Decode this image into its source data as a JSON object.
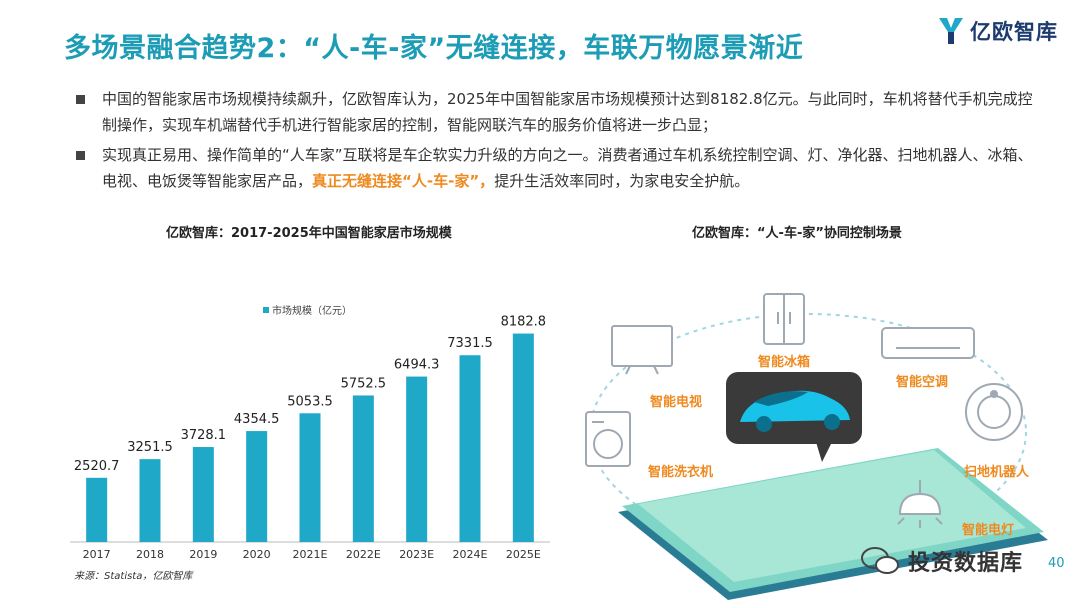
{
  "slide": {
    "title": "多场景融合趋势2：“人-车-家”无缝连接，车联万物愿景渐近",
    "logo_text": "亿欧智库",
    "page_number": "40",
    "watermark": "投资数据库"
  },
  "bullets": [
    {
      "parts": [
        {
          "text": "中国的智能家居市场规模持续飙升，亿欧智库认为，2025年中国智能家居市场规模预计达到8182.8亿元。与此同时，车机将替代手机完成控制操作，实现车机端替代手机进行智能家居的控制，智能网联汽车的服务价值将进一步凸显；",
          "highlight": false
        }
      ]
    },
    {
      "parts": [
        {
          "text": "实现真正易用、操作简单的“人车家”互联将是车企软实力升级的方向之一。消费者通过车机系统控制空调、灯、净化器、扫地机器人、冰箱、电视、电饭煲等智能家居产品，",
          "highlight": false
        },
        {
          "text": "真正无缝连接“人-车-家”，",
          "highlight": true
        },
        {
          "text": "提升生活效率同时，为家电安全护航。",
          "highlight": false
        }
      ]
    }
  ],
  "left_panel": {
    "title": "亿欧智库：2017-2025年中国智能家居市场规模",
    "source": "来源：Statista，亿欧智库"
  },
  "right_panel": {
    "title": "亿欧智库：“人-车-家”协同控制场景",
    "labels": {
      "tv": "智能电视",
      "fridge": "智能冰箱",
      "ac": "智能空调",
      "washer": "智能洗衣机",
      "robot": "扫地机器人",
      "lamp": "智能电灯"
    }
  },
  "colors": {
    "accent": "#1c9cb5",
    "bar": "#1fa8c8",
    "highlight": "#ee8a1f"
  },
  "chart_data": {
    "type": "bar",
    "categories": [
      "2017",
      "2018",
      "2019",
      "2020",
      "2021E",
      "2022E",
      "2023E",
      "2024E",
      "2025E"
    ],
    "series": [
      {
        "name": "市场规模（亿元）",
        "values": [
          2520.7,
          3251.5,
          3728.1,
          4354.5,
          5053.5,
          5752.5,
          6494.3,
          7331.5,
          8182.8
        ]
      }
    ],
    "data_labels": [
      "2520.7",
      "3251.5",
      "3728.1",
      "4354.5",
      "5053.5",
      "5752.5",
      "6494.3",
      "7331.5",
      "8182.8"
    ],
    "ylim": [
      0,
      9500
    ],
    "legend": "top-left",
    "grid": false
  }
}
